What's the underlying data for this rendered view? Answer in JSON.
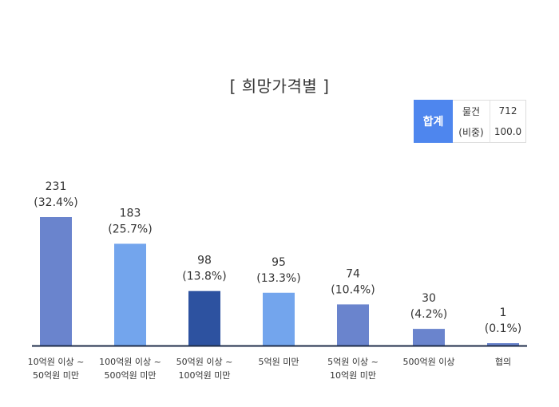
{
  "chart_data": {
    "type": "bar",
    "title": "[ 희망가격별 ]",
    "categories": [
      [
        "10억원 이상 ~",
        "50억원 미만"
      ],
      [
        "100억원 이상 ~",
        "500억원 미만"
      ],
      [
        "50억원 이상 ~",
        "100억원 미만"
      ],
      [
        "5억원 미만"
      ],
      [
        "5억원 이상 ~",
        "10억원 미만"
      ],
      [
        "500억원 이상"
      ],
      [
        "협의"
      ]
    ],
    "values": [
      231,
      183,
      98,
      95,
      74,
      30,
      1
    ],
    "value_labels": [
      "231",
      "183",
      "98",
      "95",
      "74",
      "30",
      "1"
    ],
    "percent_labels": [
      "(32.4%)",
      "(25.7%)",
      "(13.8%)",
      "(13.3%)",
      "(10.4%)",
      "(4.2%)",
      "(0.1%)"
    ],
    "bar_colors": [
      "#6a84cd",
      "#73a5ed",
      "#2d52a0",
      "#73a5ed",
      "#6a84cd",
      "#6a84cd",
      "#6a84cd"
    ],
    "ylim": [
      0,
      231
    ],
    "xlabel": "",
    "ylabel": ""
  },
  "summary": {
    "total_label": "합계",
    "rows": [
      {
        "label": "물건",
        "value": "712"
      },
      {
        "label": "(비중)",
        "value": "100.0"
      }
    ]
  },
  "colors": {
    "accent": "#4e86ee",
    "axis": "#1f2d4a"
  }
}
